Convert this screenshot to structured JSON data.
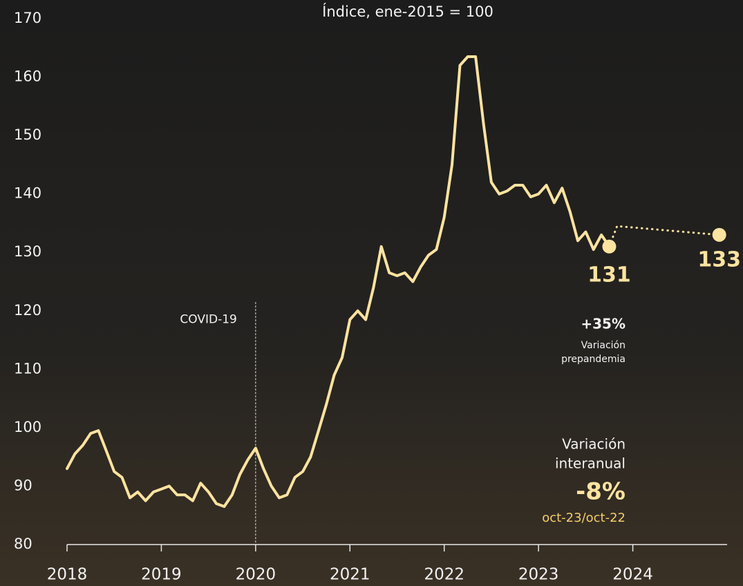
{
  "chart_data": {
    "type": "line",
    "subtitle": "Índice, ene-2015 = 100",
    "x": [
      2018,
      2018.083,
      2018.167,
      2018.25,
      2018.333,
      2018.417,
      2018.5,
      2018.583,
      2018.667,
      2018.75,
      2018.833,
      2018.917,
      2019,
      2019.083,
      2019.167,
      2019.25,
      2019.333,
      2019.417,
      2019.5,
      2019.583,
      2019.667,
      2019.75,
      2019.833,
      2019.917,
      2020,
      2020.083,
      2020.167,
      2020.25,
      2020.333,
      2020.417,
      2020.5,
      2020.583,
      2020.667,
      2020.75,
      2020.833,
      2020.917,
      2021,
      2021.083,
      2021.167,
      2021.25,
      2021.333,
      2021.417,
      2021.5,
      2021.583,
      2021.667,
      2021.75,
      2021.833,
      2021.917,
      2022,
      2022.083,
      2022.167,
      2022.25,
      2022.333,
      2022.417,
      2022.5,
      2022.583,
      2022.667,
      2022.75,
      2022.833,
      2022.917,
      2023,
      2023.083,
      2023.167,
      2023.25,
      2023.333,
      2023.417,
      2023.5,
      2023.583,
      2023.667,
      2023.75
    ],
    "series": [
      {
        "color": "#fde3a0",
        "style": "solid",
        "values": [
          93,
          95.5,
          97,
          99,
          99.5,
          96,
          92.5,
          91.5,
          88,
          89,
          87.5,
          89,
          89.5,
          90,
          88.5,
          88.5,
          87.5,
          90.5,
          89,
          87,
          86.5,
          88.5,
          92,
          94.5,
          96.5,
          93,
          90,
          88,
          88.5,
          91.5,
          92.5,
          95,
          99.5,
          104,
          109,
          112,
          118.5,
          120,
          118.5,
          124,
          131,
          126.5,
          126,
          126.5,
          125,
          127.5,
          129.5,
          130.5,
          136,
          145,
          162,
          163.5,
          163.5,
          152,
          142,
          140,
          140.5,
          141.5,
          141.5,
          139.5,
          140,
          141.5,
          138.5,
          141,
          137,
          132,
          133.5,
          130.5,
          133,
          131
        ]
      },
      {
        "color": "#fde3a0",
        "style": "dotted",
        "x": [
          2023.75,
          2023.833,
          2024.917
        ],
        "values": [
          131,
          134.5,
          133
        ]
      }
    ],
    "xlim": [
      2018,
      2025
    ],
    "xticks": [
      2018,
      2019,
      2020,
      2021,
      2022,
      2023,
      2024
    ],
    "ylim": [
      80,
      170
    ],
    "yticks": [
      80,
      90,
      100,
      110,
      120,
      130,
      140,
      150,
      160,
      170
    ],
    "grid": false,
    "event": {
      "text": "COVID-19",
      "x": 2020
    },
    "annotations": [
      {
        "text": "+35%",
        "lines": [
          "Variación",
          "prepandemia"
        ]
      },
      {
        "lines": [
          "Variación",
          "interanual"
        ],
        "text": "-8%",
        "note": "oct-23/oct-22"
      }
    ]
  }
}
